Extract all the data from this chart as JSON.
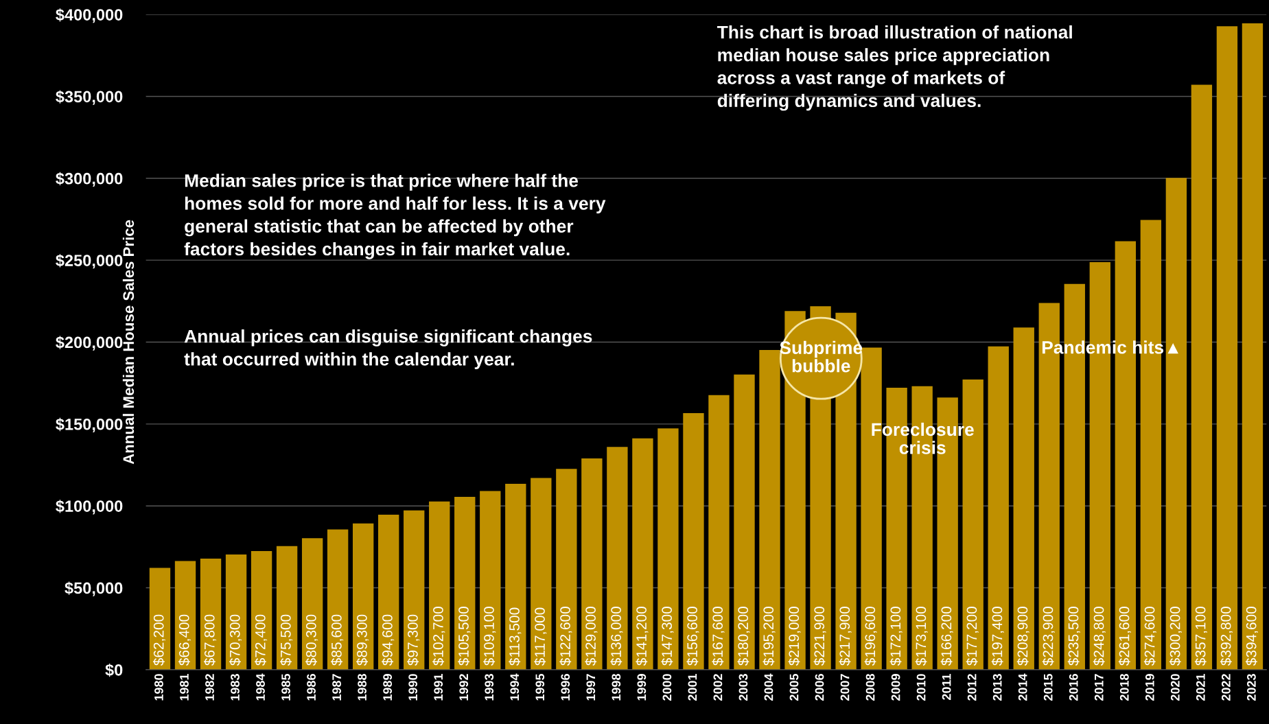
{
  "chart_data": {
    "type": "bar",
    "ylabel": "Annual Median House Sales Price",
    "categories": [
      "1980",
      "1981",
      "1982",
      "1983",
      "1984",
      "1985",
      "1986",
      "1987",
      "1988",
      "1989",
      "1990",
      "1991",
      "1992",
      "1993",
      "1994",
      "1995",
      "1996",
      "1997",
      "1998",
      "1999",
      "2000",
      "2001",
      "2002",
      "2003",
      "2004",
      "2005",
      "2006",
      "2007",
      "2008",
      "2009",
      "2010",
      "2011",
      "2012",
      "2013",
      "2014",
      "2015",
      "2016",
      "2017",
      "2018",
      "2019",
      "2020",
      "2021",
      "2022",
      "2023"
    ],
    "values": [
      62200,
      66400,
      67800,
      70300,
      72400,
      75500,
      80300,
      85600,
      89300,
      94600,
      97300,
      102700,
      105500,
      109100,
      113500,
      117000,
      122600,
      129000,
      136000,
      141200,
      147300,
      156600,
      167600,
      180200,
      195200,
      219000,
      221900,
      217900,
      196600,
      172100,
      173100,
      166200,
      177200,
      197400,
      208900,
      223900,
      235500,
      248800,
      261600,
      274600,
      300200,
      357100,
      392800,
      394600
    ],
    "value_labels": [
      "$62,200",
      "$66,400",
      "$67,800",
      "$70,300",
      "$72,400",
      "$75,500",
      "$80,300",
      "$85,600",
      "$89,300",
      "$94,600",
      "$97,300",
      "$102,700",
      "$105,500",
      "$109,100",
      "$113,500",
      "$117,000",
      "$122,600",
      "$129,000",
      "$136,000",
      "$141,200",
      "$147,300",
      "$156,600",
      "$167,600",
      "$180,200",
      "$195,200",
      "$219,000",
      "$221,900",
      "$217,900",
      "$196,600",
      "$172,100",
      "$173,100",
      "$166,200",
      "$177,200",
      "$197,400",
      "$208,900",
      "$223,900",
      "$235,500",
      "$248,800",
      "$261,600",
      "$274,600",
      "$300,200",
      "$357,100",
      "$392,800",
      "$394,600"
    ],
    "color": "#bf9000",
    "ylim": [
      0,
      400000
    ],
    "yticks": [
      {
        "value": 0,
        "label": "$0"
      },
      {
        "value": 50000,
        "label": "$50,000"
      },
      {
        "value": 100000,
        "label": "$100,000"
      },
      {
        "value": 150000,
        "label": "$150,000"
      },
      {
        "value": 200000,
        "label": "$200,000"
      },
      {
        "value": 250000,
        "label": "$250,000"
      },
      {
        "value": 300000,
        "label": "$300,000"
      },
      {
        "value": 350000,
        "label": "$350,000"
      },
      {
        "value": 400000,
        "label": "$400,000"
      }
    ],
    "grid": "y",
    "annotations": [
      "This chart is broad illustration of national\nmedian house sales price appreciation\nacross a vast range of markets of\ndiffering dynamics and values.",
      "Median sales price is that price where half the\nhomes sold for more and half for less. It is a very\ngeneral statistic that can be affected by other\nfactors besides changes in fair market value.",
      "Annual prices can disguise significant changes\nthat occurred within the calendar year.",
      "Subprime\nbubble",
      "Foreclosure\ncrisis",
      "Pandemic hits▲"
    ]
  }
}
